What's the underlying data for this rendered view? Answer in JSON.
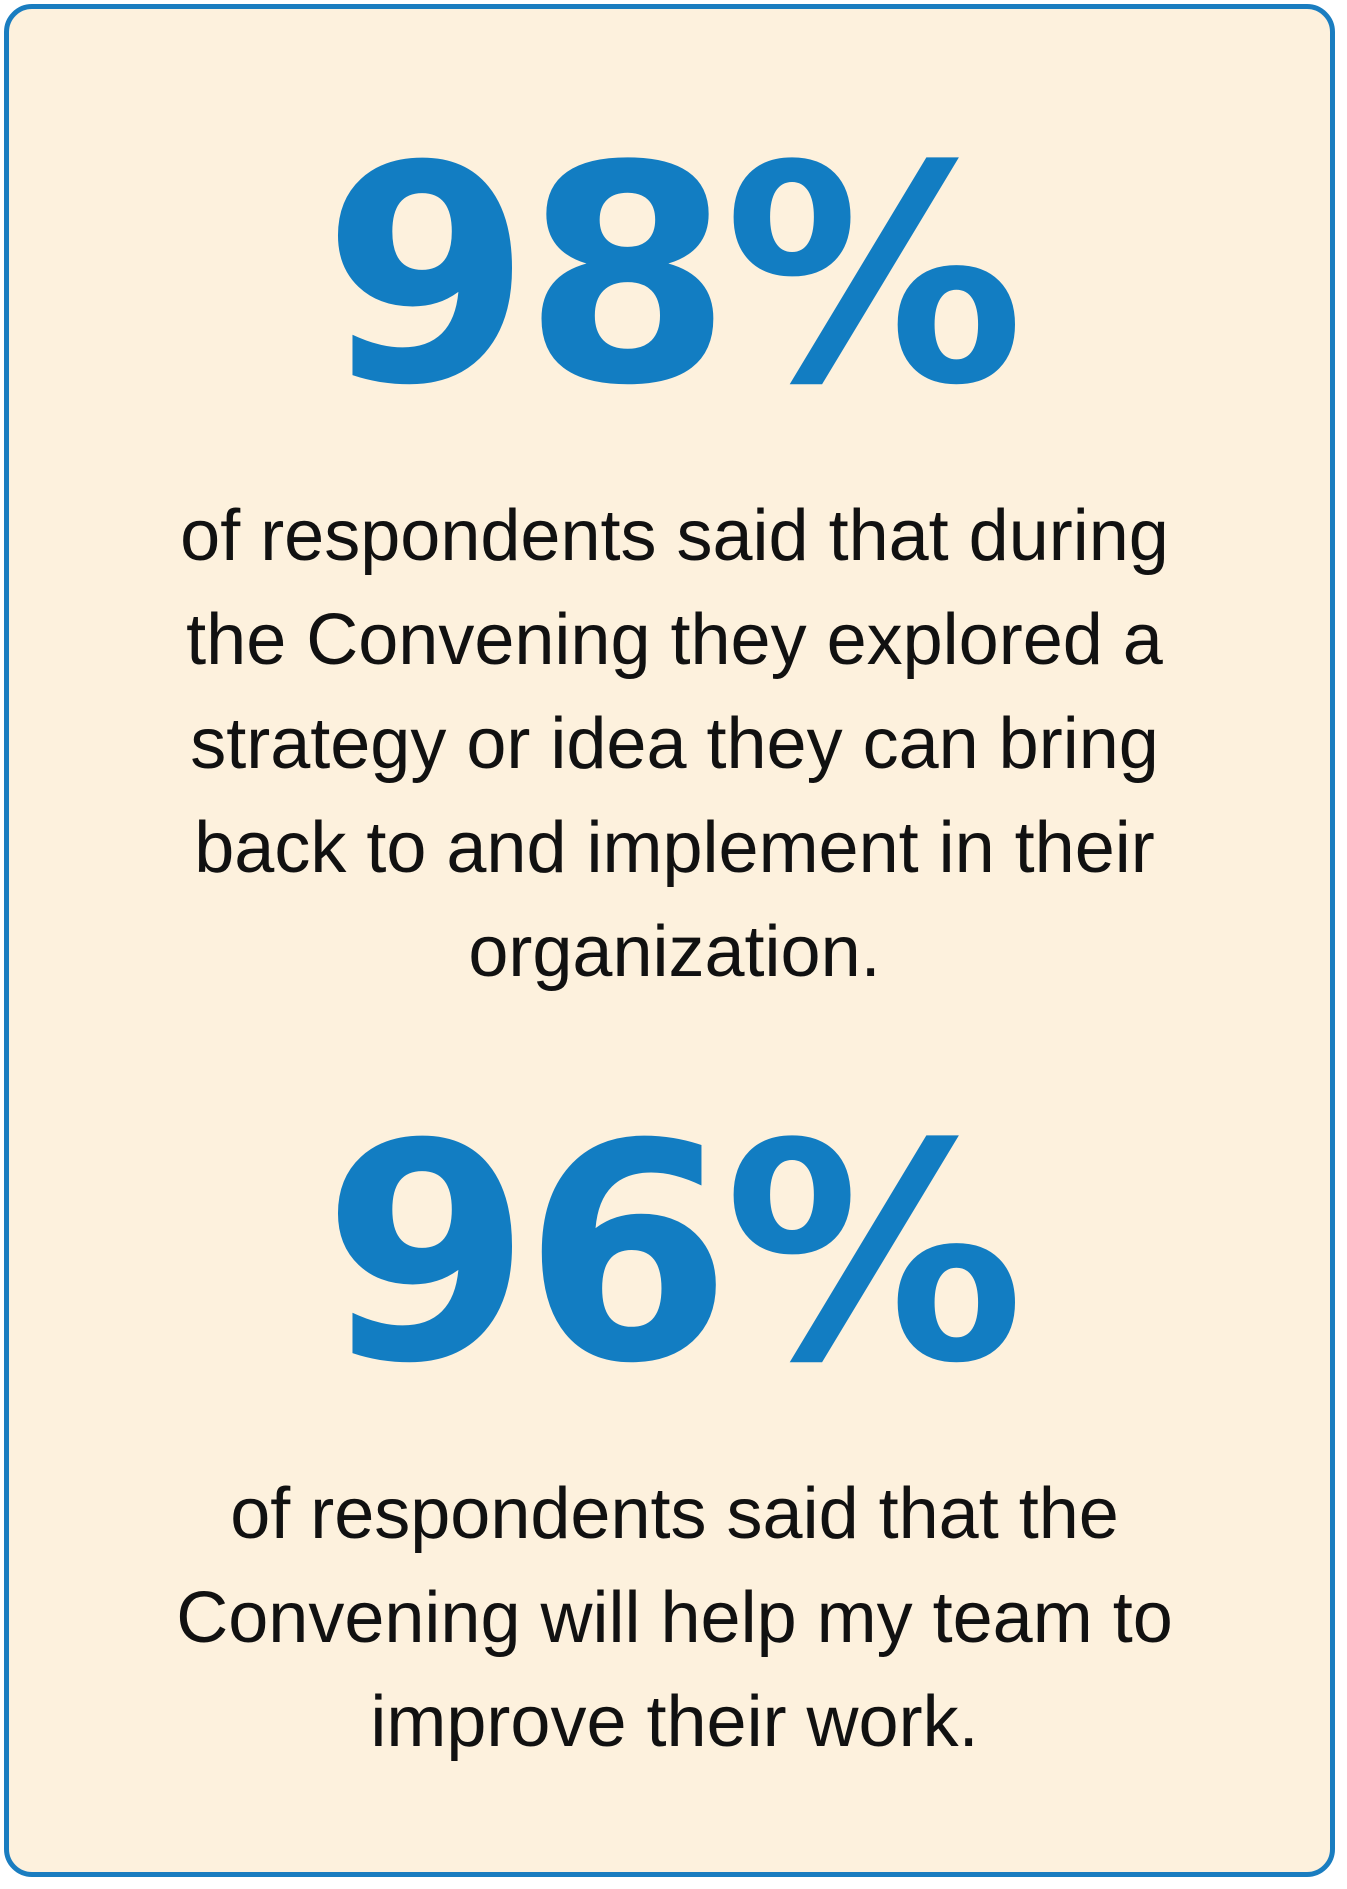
{
  "stats": [
    {
      "value": "98%",
      "description": "of respondents said that during the Convening they explored a strategy or idea they can bring back to and implement in their organization."
    },
    {
      "value": "96%",
      "description": "of respondents said that the Convening will help my team to improve their work."
    }
  ],
  "colors": {
    "accent": "#127dc2",
    "border": "#1a7dc0",
    "background": "#fdf1dd",
    "text": "#111111"
  }
}
